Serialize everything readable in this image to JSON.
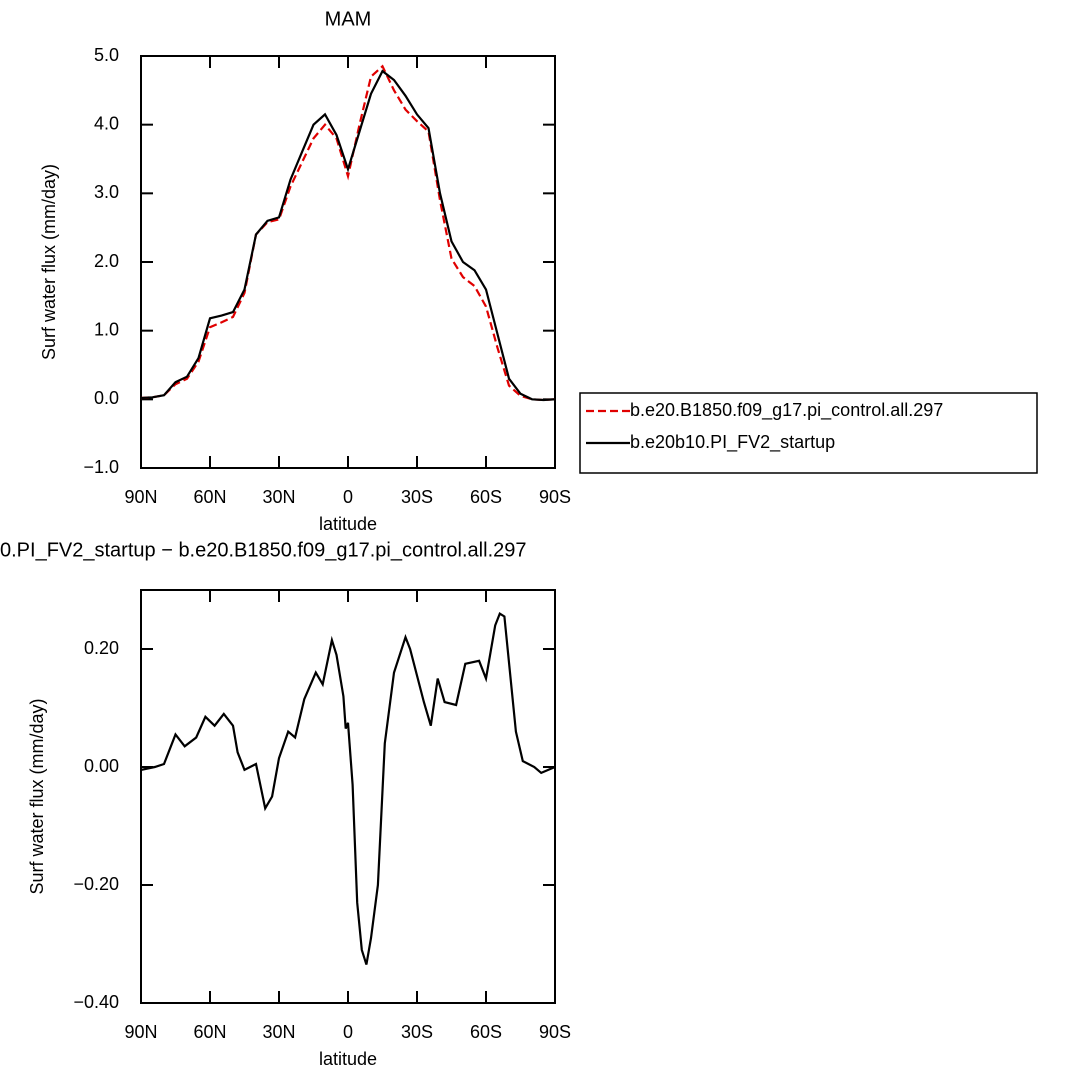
{
  "chart_data": [
    {
      "type": "line",
      "title": "MAM",
      "xlabel": "latitude",
      "ylabel": "Surf water flux (mm/day)",
      "x": [
        90,
        85,
        80,
        75,
        70,
        65,
        60,
        55,
        50,
        45,
        40,
        35,
        30,
        25,
        20,
        15,
        10,
        5,
        0,
        -5,
        -10,
        -15,
        -20,
        -25,
        -30,
        -35,
        -40,
        -45,
        -50,
        -55,
        -60,
        -65,
        -70,
        -75,
        -80,
        -85,
        -90
      ],
      "series": [
        {
          "name": "b.e20.B1850.f09_g17.pi_control.all.297",
          "color": "#e00000",
          "dash": true,
          "values": [
            0.02,
            0.03,
            0.06,
            0.22,
            0.3,
            0.55,
            1.05,
            1.12,
            1.2,
            1.55,
            2.4,
            2.58,
            2.62,
            3.1,
            3.45,
            3.8,
            4.0,
            3.8,
            3.25,
            4.0,
            4.7,
            4.85,
            4.5,
            4.22,
            4.05,
            3.9,
            2.9,
            2.05,
            1.78,
            1.65,
            1.35,
            0.75,
            0.2,
            0.05,
            0.0,
            -0.01,
            0.0
          ]
        },
        {
          "name": "b.e20b10.PI_FV2_startup",
          "color": "#000000",
          "dash": false,
          "values": [
            0.02,
            0.03,
            0.06,
            0.25,
            0.33,
            0.6,
            1.18,
            1.22,
            1.27,
            1.6,
            2.4,
            2.6,
            2.65,
            3.2,
            3.6,
            4.0,
            4.15,
            3.85,
            3.35,
            3.9,
            4.45,
            4.78,
            4.65,
            4.42,
            4.15,
            3.95,
            3.0,
            2.3,
            2.0,
            1.88,
            1.6,
            0.95,
            0.3,
            0.08,
            0.0,
            -0.01,
            0.0
          ]
        }
      ],
      "xlim": [
        90,
        -90
      ],
      "xticks": [
        {
          "value": 90,
          "label": "90N"
        },
        {
          "value": 60,
          "label": "60N"
        },
        {
          "value": 30,
          "label": "30N"
        },
        0,
        {
          "value": -30,
          "label": "30S"
        },
        {
          "value": -60,
          "label": "60S"
        },
        {
          "value": -90,
          "label": "90S"
        }
      ],
      "ylim": [
        -1,
        5
      ],
      "yticks": [
        {
          "value": 5,
          "label": "5.0"
        },
        {
          "value": 4,
          "label": "4.0"
        },
        {
          "value": 3,
          "label": "3.0"
        },
        {
          "value": 2,
          "label": "2.0"
        },
        {
          "value": 1,
          "label": "1.0"
        },
        {
          "value": 0,
          "label": "0.0"
        },
        {
          "value": -1,
          "label": "−1.0"
        }
      ],
      "legend": "outside-right"
    },
    {
      "type": "line",
      "title": "0.PI_FV2_startup − b.e20.B1850.f09_g17.pi_control.all.297",
      "xlabel": "latitude",
      "ylabel": "Surf water flux (mm/day)",
      "x": [
        90,
        84,
        80,
        75,
        71,
        66,
        62,
        58,
        54,
        50,
        48,
        45,
        40,
        36,
        33,
        30,
        26,
        23,
        19,
        14,
        11,
        7,
        5,
        2,
        1,
        0,
        -2,
        -4,
        -6,
        -8,
        -10,
        -13,
        -16,
        -20,
        -25,
        -27,
        -33,
        -36,
        -39,
        -42,
        -47,
        -51,
        -57,
        -60,
        -64,
        -66,
        -68,
        -73,
        -76,
        -81,
        -84,
        -90
      ],
      "series": [
        {
          "color": "#000000",
          "dash": false,
          "values": [
            -0.005,
            0,
            0.005,
            0.055,
            0.035,
            0.05,
            0.085,
            0.07,
            0.09,
            0.07,
            0.025,
            -0.005,
            0.005,
            -0.07,
            -0.05,
            0.015,
            0.06,
            0.05,
            0.115,
            0.16,
            0.14,
            0.215,
            0.19,
            0.12,
            0.065,
            0.075,
            -0.03,
            -0.23,
            -0.31,
            -0.335,
            -0.29,
            -0.2,
            0.04,
            0.16,
            0.22,
            0.2,
            0.11,
            0.07,
            0.15,
            0.11,
            0.105,
            0.175,
            0.18,
            0.15,
            0.24,
            0.26,
            0.255,
            0.06,
            0.01,
            0,
            -0.01,
            0
          ]
        }
      ],
      "xlim": [
        90,
        -90
      ],
      "xticks": [
        {
          "value": 90,
          "label": "90N"
        },
        {
          "value": 60,
          "label": "60N"
        },
        {
          "value": 30,
          "label": "30N"
        },
        0,
        {
          "value": -30,
          "label": "30S"
        },
        {
          "value": -60,
          "label": "60S"
        },
        {
          "value": -90,
          "label": "90S"
        }
      ],
      "ylim": [
        -0.4,
        0.3
      ],
      "yticks": [
        {
          "value": 0.2,
          "label": "0.20"
        },
        {
          "value": 0,
          "label": "0.00"
        },
        {
          "value": -0.2,
          "label": "−0.20"
        },
        {
          "value": -0.4,
          "label": "−0.40"
        }
      ]
    }
  ]
}
